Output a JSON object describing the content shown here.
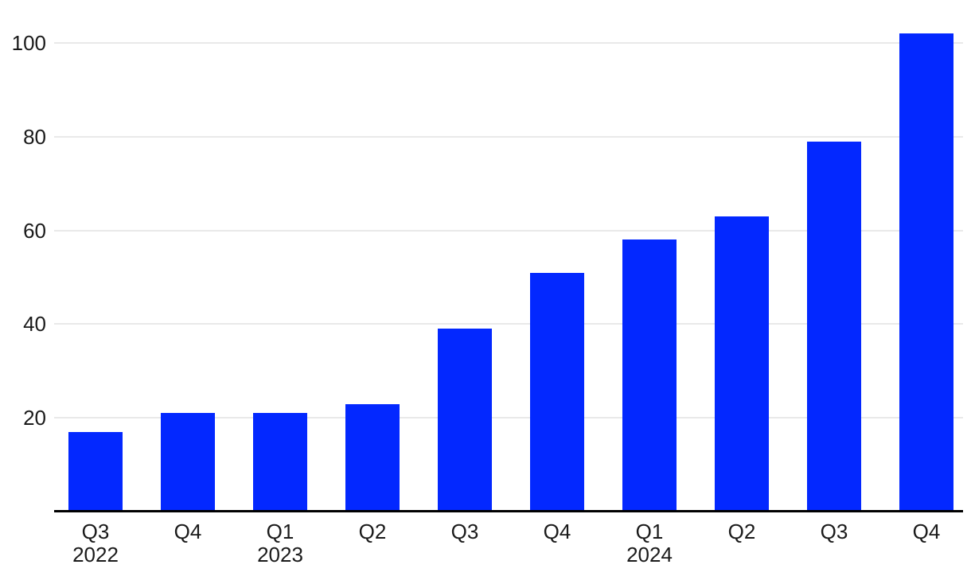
{
  "chart_data": {
    "type": "bar",
    "categories": [
      "Q3",
      "Q4",
      "Q1",
      "Q2",
      "Q3",
      "Q4",
      "Q1",
      "Q2",
      "Q3",
      "Q4"
    ],
    "year_labels": [
      "2022",
      "",
      "2023",
      "",
      "",
      "",
      "2024",
      "",
      "",
      ""
    ],
    "values": [
      17,
      21,
      21,
      23,
      39,
      51,
      58,
      63,
      79,
      102
    ],
    "yticks": [
      20,
      40,
      60,
      80,
      100
    ],
    "ylim": [
      0,
      109
    ],
    "grid": true,
    "legend_position": "none",
    "colors": {
      "bar": "#0328ff",
      "gridline": "#e9e9e9",
      "axis_line": "#000000",
      "label_text": "#1a1a1a",
      "background": "#ffffff"
    }
  }
}
